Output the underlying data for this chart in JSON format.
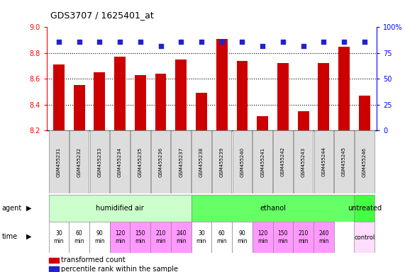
{
  "title": "GDS3707 / 1625401_at",
  "samples": [
    "GSM455231",
    "GSM455232",
    "GSM455233",
    "GSM455234",
    "GSM455235",
    "GSM455236",
    "GSM455237",
    "GSM455238",
    "GSM455239",
    "GSM455240",
    "GSM455241",
    "GSM455242",
    "GSM455243",
    "GSM455244",
    "GSM455245",
    "GSM455246"
  ],
  "bar_values": [
    8.71,
    8.55,
    8.65,
    8.77,
    8.63,
    8.64,
    8.75,
    8.49,
    8.91,
    8.74,
    8.31,
    8.72,
    8.35,
    8.72,
    8.85,
    8.47
  ],
  "percentile_values": [
    86,
    86,
    86,
    86,
    86,
    82,
    86,
    86,
    86,
    86,
    82,
    86,
    82,
    86,
    86,
    86
  ],
  "ylim_left": [
    8.2,
    9.0
  ],
  "ylim_right": [
    0,
    100
  ],
  "bar_color": "#cc0000",
  "dot_color": "#2222cc",
  "dotted_line_values": [
    8.8,
    8.6,
    8.4
  ],
  "right_tick_values": [
    0,
    25,
    50,
    75,
    100
  ],
  "left_tick_values": [
    8.2,
    8.4,
    8.6,
    8.8,
    9.0
  ],
  "agent_groups": [
    {
      "label": "humidified air",
      "span": [
        0,
        7
      ],
      "color": "#ccffcc"
    },
    {
      "label": "ethanol",
      "span": [
        7,
        15
      ],
      "color": "#66ff66"
    },
    {
      "label": "untreated",
      "span": [
        15,
        16
      ],
      "color": "#44ff44"
    }
  ],
  "time_labels_col": [
    "30\nmin",
    "60\nmin",
    "90\nmin",
    "120\nmin",
    "150\nmin",
    "210\nmin",
    "240\nmin",
    "30\nmin",
    "60\nmin",
    "90\nmin",
    "120\nmin",
    "150\nmin",
    "210\nmin",
    "240\nmin"
  ],
  "time_colors": [
    "#ffffff",
    "#ffffff",
    "#ffffff",
    "#ff99ff",
    "#ff99ff",
    "#ff99ff",
    "#ff99ff",
    "#ffffff",
    "#ffffff",
    "#ffffff",
    "#ff99ff",
    "#ff99ff",
    "#ff99ff",
    "#ff99ff"
  ],
  "control_color": "#ffddff",
  "legend_items": [
    {
      "color": "#cc0000",
      "label": "transformed count"
    },
    {
      "color": "#2222cc",
      "label": "percentile rank within the sample"
    }
  ]
}
